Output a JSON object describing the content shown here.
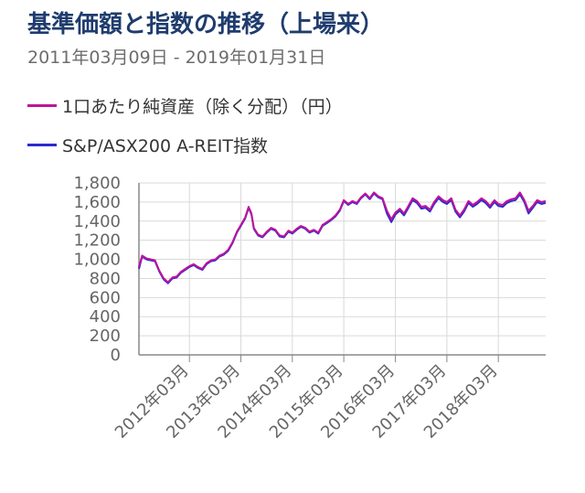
{
  "header": {
    "title": "基準価額と指数の推移（上場来）",
    "subtitle": "2011年03月09日 - 2019年01月31日"
  },
  "legend": [
    {
      "label": "1口あたり純資産（除く分配）（円）",
      "color": "#c0129a"
    },
    {
      "label": "S&P/ASX200 A-REIT指数",
      "color": "#2b2bd0"
    }
  ],
  "chart_data": {
    "type": "line",
    "title": "基準価額と指数の推移（上場来）",
    "subtitle": "2011年03月09日 - 2019年01月31日",
    "xlabel": "",
    "ylabel": "",
    "x_range": [
      "2011-03-09",
      "2019-01-31"
    ],
    "ylim": [
      0,
      1800
    ],
    "y_ticks": [
      "0",
      "200",
      "400",
      "600",
      "800",
      "1,000",
      "1,200",
      "1,400",
      "1,600",
      "1,800"
    ],
    "x_ticks": [
      {
        "date": "2012-03",
        "label": "2012年03月"
      },
      {
        "date": "2013-03",
        "label": "2013年03月"
      },
      {
        "date": "2014-03",
        "label": "2014年03月"
      },
      {
        "date": "2015-03",
        "label": "2015年03月"
      },
      {
        "date": "2016-03",
        "label": "2016年03月"
      },
      {
        "date": "2017-03",
        "label": "2017年03月"
      },
      {
        "date": "2018-03",
        "label": "2018年03月"
      }
    ],
    "grid": true,
    "legend_position": "top",
    "series": [
      {
        "name": "1口あたり純資産（除く分配）（円）",
        "color": "#c0129a",
        "points": [
          [
            "2011-03-09",
            920
          ],
          [
            "2011-04-01",
            1040
          ],
          [
            "2011-05-01",
            1010
          ],
          [
            "2011-06-01",
            1000
          ],
          [
            "2011-07-01",
            990
          ],
          [
            "2011-08-01",
            880
          ],
          [
            "2011-09-01",
            800
          ],
          [
            "2011-10-01",
            760
          ],
          [
            "2011-11-01",
            810
          ],
          [
            "2011-12-01",
            820
          ],
          [
            "2012-01-01",
            870
          ],
          [
            "2012-02-01",
            900
          ],
          [
            "2012-03-01",
            930
          ],
          [
            "2012-04-01",
            950
          ],
          [
            "2012-05-01",
            920
          ],
          [
            "2012-06-01",
            900
          ],
          [
            "2012-07-01",
            960
          ],
          [
            "2012-08-01",
            990
          ],
          [
            "2012-09-01",
            1000
          ],
          [
            "2012-10-01",
            1040
          ],
          [
            "2012-11-01",
            1060
          ],
          [
            "2012-12-01",
            1100
          ],
          [
            "2013-01-01",
            1180
          ],
          [
            "2013-02-01",
            1290
          ],
          [
            "2013-03-01",
            1360
          ],
          [
            "2013-04-01",
            1440
          ],
          [
            "2013-04-25",
            1550
          ],
          [
            "2013-05-15",
            1480
          ],
          [
            "2013-06-01",
            1330
          ],
          [
            "2013-07-01",
            1260
          ],
          [
            "2013-08-01",
            1240
          ],
          [
            "2013-09-01",
            1290
          ],
          [
            "2013-10-01",
            1330
          ],
          [
            "2013-11-01",
            1310
          ],
          [
            "2013-12-01",
            1250
          ],
          [
            "2014-01-01",
            1240
          ],
          [
            "2014-02-01",
            1300
          ],
          [
            "2014-03-01",
            1280
          ],
          [
            "2014-04-01",
            1320
          ],
          [
            "2014-05-01",
            1350
          ],
          [
            "2014-06-01",
            1330
          ],
          [
            "2014-07-01",
            1290
          ],
          [
            "2014-08-01",
            1310
          ],
          [
            "2014-09-01",
            1280
          ],
          [
            "2014-10-01",
            1360
          ],
          [
            "2014-11-01",
            1390
          ],
          [
            "2014-12-01",
            1420
          ],
          [
            "2015-01-01",
            1460
          ],
          [
            "2015-02-01",
            1520
          ],
          [
            "2015-03-01",
            1620
          ],
          [
            "2015-04-01",
            1580
          ],
          [
            "2015-05-01",
            1610
          ],
          [
            "2015-06-01",
            1590
          ],
          [
            "2015-07-01",
            1650
          ],
          [
            "2015-08-01",
            1690
          ],
          [
            "2015-09-01",
            1640
          ],
          [
            "2015-10-01",
            1700
          ],
          [
            "2015-11-01",
            1660
          ],
          [
            "2015-12-01",
            1640
          ],
          [
            "2016-01-01",
            1510
          ],
          [
            "2016-02-01",
            1420
          ],
          [
            "2016-03-01",
            1490
          ],
          [
            "2016-04-01",
            1530
          ],
          [
            "2016-05-01",
            1480
          ],
          [
            "2016-06-01",
            1560
          ],
          [
            "2016-07-01",
            1640
          ],
          [
            "2016-08-01",
            1610
          ],
          [
            "2016-09-01",
            1550
          ],
          [
            "2016-10-01",
            1560
          ],
          [
            "2016-11-01",
            1520
          ],
          [
            "2016-12-01",
            1600
          ],
          [
            "2017-01-01",
            1660
          ],
          [
            "2017-02-01",
            1620
          ],
          [
            "2017-03-01",
            1600
          ],
          [
            "2017-04-01",
            1640
          ],
          [
            "2017-05-01",
            1520
          ],
          [
            "2017-06-01",
            1460
          ],
          [
            "2017-07-01",
            1520
          ],
          [
            "2017-08-01",
            1610
          ],
          [
            "2017-09-01",
            1570
          ],
          [
            "2017-10-01",
            1600
          ],
          [
            "2017-11-01",
            1640
          ],
          [
            "2017-12-01",
            1610
          ],
          [
            "2018-01-01",
            1560
          ],
          [
            "2018-02-01",
            1620
          ],
          [
            "2018-03-01",
            1580
          ],
          [
            "2018-04-01",
            1570
          ],
          [
            "2018-05-01",
            1610
          ],
          [
            "2018-06-01",
            1630
          ],
          [
            "2018-07-01",
            1640
          ],
          [
            "2018-08-01",
            1700
          ],
          [
            "2018-09-01",
            1620
          ],
          [
            "2018-10-01",
            1510
          ],
          [
            "2018-11-01",
            1560
          ],
          [
            "2018-12-01",
            1620
          ],
          [
            "2019-01-01",
            1600
          ],
          [
            "2019-01-31",
            1610
          ]
        ]
      },
      {
        "name": "S&P/ASX200 A-REIT指数",
        "color": "#2b2bd0",
        "points": [
          [
            "2011-03-09",
            900
          ],
          [
            "2011-04-01",
            1030
          ],
          [
            "2011-05-01",
            1000
          ],
          [
            "2011-06-01",
            990
          ],
          [
            "2011-07-01",
            980
          ],
          [
            "2011-08-01",
            870
          ],
          [
            "2011-09-01",
            790
          ],
          [
            "2011-10-01",
            750
          ],
          [
            "2011-11-01",
            800
          ],
          [
            "2011-12-01",
            810
          ],
          [
            "2012-01-01",
            860
          ],
          [
            "2012-02-01",
            890
          ],
          [
            "2012-03-01",
            920
          ],
          [
            "2012-04-01",
            940
          ],
          [
            "2012-05-01",
            910
          ],
          [
            "2012-06-01",
            890
          ],
          [
            "2012-07-01",
            950
          ],
          [
            "2012-08-01",
            980
          ],
          [
            "2012-09-01",
            990
          ],
          [
            "2012-10-01",
            1030
          ],
          [
            "2012-11-01",
            1050
          ],
          [
            "2012-12-01",
            1090
          ],
          [
            "2013-01-01",
            1170
          ],
          [
            "2013-02-01",
            1280
          ],
          [
            "2013-03-01",
            1350
          ],
          [
            "2013-04-01",
            1430
          ],
          [
            "2013-04-25",
            1540
          ],
          [
            "2013-05-15",
            1470
          ],
          [
            "2013-06-01",
            1320
          ],
          [
            "2013-07-01",
            1250
          ],
          [
            "2013-08-01",
            1230
          ],
          [
            "2013-09-01",
            1280
          ],
          [
            "2013-10-01",
            1320
          ],
          [
            "2013-11-01",
            1300
          ],
          [
            "2013-12-01",
            1240
          ],
          [
            "2014-01-01",
            1230
          ],
          [
            "2014-02-01",
            1290
          ],
          [
            "2014-03-01",
            1270
          ],
          [
            "2014-04-01",
            1310
          ],
          [
            "2014-05-01",
            1340
          ],
          [
            "2014-06-01",
            1320
          ],
          [
            "2014-07-01",
            1280
          ],
          [
            "2014-08-01",
            1300
          ],
          [
            "2014-09-01",
            1270
          ],
          [
            "2014-10-01",
            1350
          ],
          [
            "2014-11-01",
            1380
          ],
          [
            "2014-12-01",
            1410
          ],
          [
            "2015-01-01",
            1450
          ],
          [
            "2015-02-01",
            1510
          ],
          [
            "2015-03-01",
            1610
          ],
          [
            "2015-04-01",
            1570
          ],
          [
            "2015-05-01",
            1600
          ],
          [
            "2015-06-01",
            1580
          ],
          [
            "2015-07-01",
            1640
          ],
          [
            "2015-08-01",
            1680
          ],
          [
            "2015-09-01",
            1630
          ],
          [
            "2015-10-01",
            1690
          ],
          [
            "2015-11-01",
            1650
          ],
          [
            "2015-12-01",
            1630
          ],
          [
            "2016-01-01",
            1480
          ],
          [
            "2016-02-01",
            1390
          ],
          [
            "2016-03-01",
            1470
          ],
          [
            "2016-04-01",
            1510
          ],
          [
            "2016-05-01",
            1460
          ],
          [
            "2016-06-01",
            1540
          ],
          [
            "2016-07-01",
            1620
          ],
          [
            "2016-08-01",
            1590
          ],
          [
            "2016-09-01",
            1530
          ],
          [
            "2016-10-01",
            1540
          ],
          [
            "2016-11-01",
            1500
          ],
          [
            "2016-12-01",
            1580
          ],
          [
            "2017-01-01",
            1640
          ],
          [
            "2017-02-01",
            1600
          ],
          [
            "2017-03-01",
            1580
          ],
          [
            "2017-04-01",
            1620
          ],
          [
            "2017-05-01",
            1500
          ],
          [
            "2017-06-01",
            1440
          ],
          [
            "2017-07-01",
            1500
          ],
          [
            "2017-08-01",
            1590
          ],
          [
            "2017-09-01",
            1550
          ],
          [
            "2017-10-01",
            1580
          ],
          [
            "2017-11-01",
            1620
          ],
          [
            "2017-12-01",
            1590
          ],
          [
            "2018-01-01",
            1540
          ],
          [
            "2018-02-01",
            1600
          ],
          [
            "2018-03-01",
            1560
          ],
          [
            "2018-04-01",
            1550
          ],
          [
            "2018-05-01",
            1590
          ],
          [
            "2018-06-01",
            1610
          ],
          [
            "2018-07-01",
            1620
          ],
          [
            "2018-08-01",
            1680
          ],
          [
            "2018-09-01",
            1600
          ],
          [
            "2018-10-01",
            1480
          ],
          [
            "2018-11-01",
            1540
          ],
          [
            "2018-12-01",
            1600
          ],
          [
            "2019-01-01",
            1580
          ],
          [
            "2019-01-31",
            1590
          ]
        ]
      }
    ]
  }
}
